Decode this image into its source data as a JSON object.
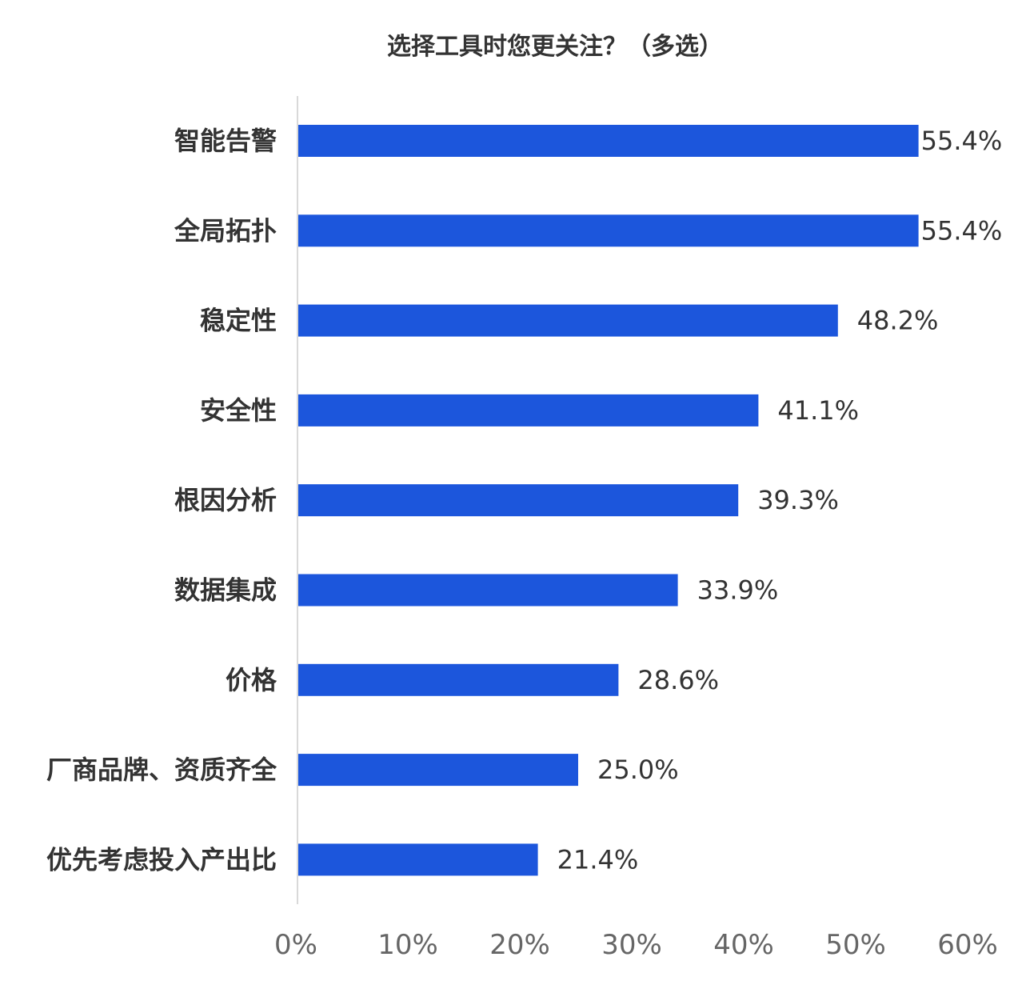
{
  "chart_data": {
    "type": "bar",
    "orientation": "horizontal",
    "title": "选择工具时您更关注？（多选）",
    "categories": [
      "智能告警",
      "全局拓扑",
      "稳定性",
      "安全性",
      "根因分析",
      "数据集成",
      "价格",
      "厂商品牌、资质齐全",
      "优先考虑投入产出比"
    ],
    "values": [
      55.4,
      55.4,
      48.2,
      41.1,
      39.3,
      33.9,
      28.6,
      25.0,
      21.4
    ],
    "value_labels": [
      "55.4%",
      "55.4%",
      "48.2%",
      "41.1%",
      "39.3%",
      "33.9%",
      "28.6%",
      "25.0%",
      "21.4%"
    ],
    "xlabel": "",
    "ylabel": "",
    "xlim": [
      0,
      60
    ],
    "x_ticks": [
      "0%",
      "10%",
      "20%",
      "30%",
      "40%",
      "50%",
      "60%"
    ],
    "grid": false,
    "legend": "none",
    "bar_color": "#1c56dc"
  }
}
